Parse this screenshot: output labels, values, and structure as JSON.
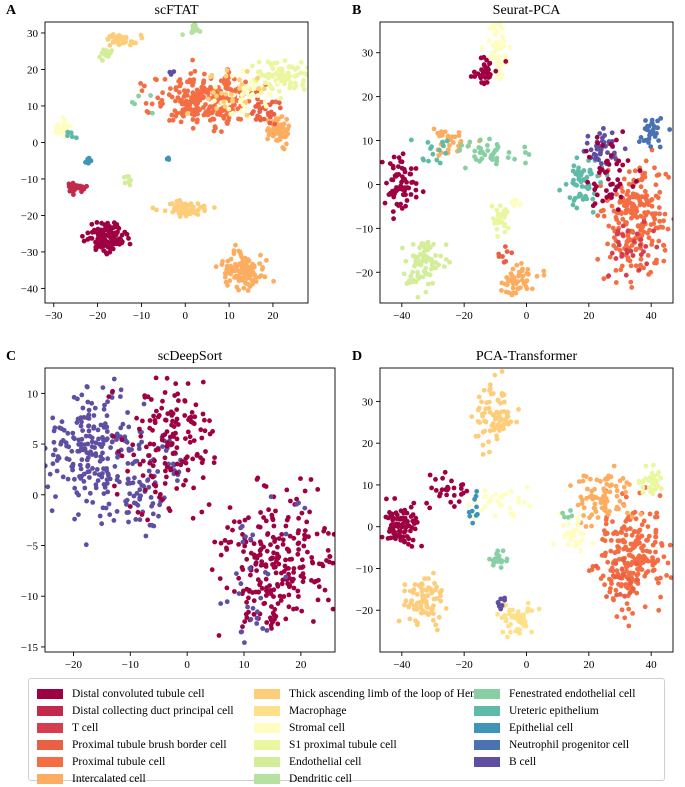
{
  "cell_types": [
    {
      "name": "Distal convoluted tubule cell",
      "color": "#9e0142"
    },
    {
      "name": "Distal collecting duct principal cell",
      "color": "#c2294a"
    },
    {
      "name": "T cell",
      "color": "#d53e4f"
    },
    {
      "name": "Proximal tubule brush border cell",
      "color": "#ea6044"
    },
    {
      "name": "Proximal tubule cell",
      "color": "#f46d43"
    },
    {
      "name": "Intercalated cell",
      "color": "#fdad60"
    },
    {
      "name": "Thick ascending limb of the loop of Henle",
      "color": "#fdcd7a"
    },
    {
      "name": "Macrophage",
      "color": "#fee08b"
    },
    {
      "name": "Stromal cell",
      "color": "#fffdbf"
    },
    {
      "name": "S1 proximal tubule cell",
      "color": "#eaf79e"
    },
    {
      "name": "Endothelial cell",
      "color": "#d3ed9b"
    },
    {
      "name": "Dendritic cell",
      "color": "#b6e1a1"
    },
    {
      "name": "Fenestrated endothelial cell",
      "color": "#88cfa4"
    },
    {
      "name": "Ureteric epithelium",
      "color": "#5fbaa8"
    },
    {
      "name": "Epithelial cell",
      "color": "#3d95b8"
    },
    {
      "name": "Neutrophil progenitor cell",
      "color": "#4a72b2"
    },
    {
      "name": "B cell",
      "color": "#5e4fa2"
    }
  ],
  "chart_data": [
    {
      "type": "scatter",
      "id": "A",
      "letter": "A",
      "title": "scFTAT",
      "xlim": [
        -32,
        28
      ],
      "ylim": [
        -44,
        33
      ],
      "xticks": [
        -30,
        -20,
        -10,
        0,
        10,
        20
      ],
      "yticks": [
        -40,
        -30,
        -20,
        -10,
        0,
        10,
        20,
        30
      ],
      "clusters": [
        {
          "type": 4,
          "cx": 5,
          "cy": 12,
          "sx": 6,
          "sy": 3.5,
          "n": 260
        },
        {
          "type": 5,
          "cx": 21,
          "cy": 3,
          "sx": 1.3,
          "sy": 1.8,
          "n": 60
        },
        {
          "type": 3,
          "cx": 18,
          "cy": 9,
          "sx": 2,
          "sy": 2.5,
          "n": 30
        },
        {
          "type": 9,
          "cx": 22,
          "cy": 18,
          "sx": 3,
          "sy": 2,
          "n": 90
        },
        {
          "type": 8,
          "cx": 14,
          "cy": 14,
          "sx": 3,
          "sy": 3,
          "n": 40
        },
        {
          "type": 6,
          "cx": 10,
          "cy": 14,
          "sx": 4,
          "sy": 4,
          "n": 25
        },
        {
          "type": 11,
          "cx": 2,
          "cy": 31,
          "sx": 0.8,
          "sy": 0.8,
          "n": 15
        },
        {
          "type": 6,
          "cx": -15,
          "cy": 28,
          "sx": 2,
          "sy": 0.8,
          "n": 35
        },
        {
          "type": 10,
          "cx": -18,
          "cy": 24,
          "sx": 1,
          "sy": 0.8,
          "n": 15
        },
        {
          "type": 8,
          "cx": -28,
          "cy": 4,
          "sx": 1,
          "sy": 1,
          "n": 25
        },
        {
          "type": 13,
          "cx": -26,
          "cy": 2,
          "sx": 0.6,
          "sy": 1,
          "n": 5
        },
        {
          "type": 14,
          "cx": -22,
          "cy": -5,
          "sx": 0.5,
          "sy": 0.4,
          "n": 6
        },
        {
          "type": 10,
          "cx": -13,
          "cy": -10,
          "sx": 0.5,
          "sy": 1,
          "n": 8
        },
        {
          "type": 1,
          "cx": -25,
          "cy": -12.5,
          "sx": 1.2,
          "sy": 0.8,
          "n": 30
        },
        {
          "type": 0,
          "cx": -18,
          "cy": -26,
          "sx": 2.2,
          "sy": 1.8,
          "n": 120
        },
        {
          "type": 6,
          "cx": 0,
          "cy": -18,
          "sx": 2.5,
          "sy": 1,
          "n": 60
        },
        {
          "type": 5,
          "cx": 13,
          "cy": -35,
          "sx": 2.5,
          "sy": 2.5,
          "n": 110
        },
        {
          "type": 14,
          "cx": -5,
          "cy": -5,
          "sx": 1,
          "sy": 1,
          "n": 3
        },
        {
          "type": 16,
          "cx": -3,
          "cy": 19,
          "sx": 0.5,
          "sy": 0.5,
          "n": 3
        },
        {
          "type": 12,
          "cx": -8,
          "cy": 10,
          "sx": 1.5,
          "sy": 2,
          "n": 5
        }
      ]
    },
    {
      "type": "scatter",
      "id": "B",
      "letter": "B",
      "title": "Seurat-PCA",
      "xlim": [
        -47,
        47
      ],
      "ylim": [
        -27,
        37
      ],
      "xticks": [
        -40,
        -20,
        0,
        20,
        40
      ],
      "yticks": [
        -20,
        -10,
        0,
        10,
        20,
        30
      ],
      "clusters": [
        {
          "type": 8,
          "cx": -9,
          "cy": 31,
          "sx": 2,
          "sy": 3,
          "n": 60
        },
        {
          "type": 0,
          "cx": -13,
          "cy": 26,
          "sx": 2,
          "sy": 1.5,
          "n": 35
        },
        {
          "type": 0,
          "cx": -40,
          "cy": 0,
          "sx": 3,
          "sy": 3,
          "n": 70
        },
        {
          "type": 5,
          "cx": -25,
          "cy": 10,
          "sx": 3,
          "sy": 2,
          "n": 35
        },
        {
          "type": 12,
          "cx": -10,
          "cy": 7,
          "sx": 6,
          "sy": 2,
          "n": 40
        },
        {
          "type": 13,
          "cx": -30,
          "cy": 7,
          "sx": 3,
          "sy": 2,
          "n": 15
        },
        {
          "type": 9,
          "cx": -8,
          "cy": -8,
          "sx": 1.5,
          "sy": 2,
          "n": 30
        },
        {
          "type": 10,
          "cx": -33,
          "cy": -18,
          "sx": 3,
          "sy": 3,
          "n": 80
        },
        {
          "type": 5,
          "cx": -3,
          "cy": -22,
          "sx": 3,
          "sy": 2,
          "n": 50
        },
        {
          "type": 3,
          "cx": -7,
          "cy": -16,
          "sx": 1,
          "sy": 1,
          "n": 8
        },
        {
          "type": 4,
          "cx": 35,
          "cy": -8,
          "sx": 5,
          "sy": 6,
          "n": 230
        },
        {
          "type": 13,
          "cx": 18,
          "cy": 0,
          "sx": 3,
          "sy": 3,
          "n": 60
        },
        {
          "type": 16,
          "cx": 24,
          "cy": 9,
          "sx": 3,
          "sy": 2,
          "n": 40
        },
        {
          "type": 15,
          "cx": 40,
          "cy": 12,
          "sx": 2,
          "sy": 1.5,
          "n": 35
        },
        {
          "type": 0,
          "cx": 27,
          "cy": 2,
          "sx": 5,
          "sy": 4,
          "n": 50
        },
        {
          "type": 2,
          "cx": 33,
          "cy": -15,
          "sx": 4,
          "sy": 3,
          "n": 30
        },
        {
          "type": 8,
          "cx": -3,
          "cy": -4,
          "sx": 1,
          "sy": 1,
          "n": 8
        }
      ]
    },
    {
      "type": "scatter",
      "id": "C",
      "letter": "C",
      "title": "scDeepSort",
      "xlim": [
        -25,
        26
      ],
      "ylim": [
        -15.5,
        12.5
      ],
      "xticks": [
        -20,
        -10,
        0,
        10,
        20
      ],
      "yticks": [
        -15,
        -10,
        -5,
        0,
        5,
        10
      ],
      "clusters": [
        {
          "type": 16,
          "cx": -16,
          "cy": 4,
          "sx": 4,
          "sy": 3.2,
          "n": 230
        },
        {
          "type": 16,
          "cx": -8,
          "cy": 0,
          "sx": 2,
          "sy": 2,
          "n": 40
        },
        {
          "type": 16,
          "cx": -3,
          "cy": 4,
          "sx": 1.5,
          "sy": 1.5,
          "n": 20
        },
        {
          "type": 0,
          "cx": -3,
          "cy": 5,
          "sx": 4,
          "sy": 3.2,
          "n": 150
        },
        {
          "type": 0,
          "cx": 16,
          "cy": -6,
          "sx": 5,
          "sy": 3,
          "n": 220
        },
        {
          "type": 0,
          "cx": 13,
          "cy": -11,
          "sx": 2.5,
          "sy": 1.5,
          "n": 40
        },
        {
          "type": 16,
          "cx": 12,
          "cy": -9,
          "sx": 3,
          "sy": 3,
          "n": 25
        },
        {
          "type": 16,
          "cx": 17,
          "cy": -5,
          "sx": 3,
          "sy": 2,
          "n": 8
        },
        {
          "type": 0,
          "cx": -13,
          "cy": 5,
          "sx": 2,
          "sy": 3,
          "n": 6
        }
      ]
    },
    {
      "type": "scatter",
      "id": "D",
      "letter": "D",
      "title": "PCA-Transformer",
      "xlim": [
        -47,
        47
      ],
      "ylim": [
        -30,
        38
      ],
      "xticks": [
        -40,
        -20,
        0,
        20,
        40
      ],
      "yticks": [
        -20,
        -10,
        0,
        10,
        20,
        30
      ],
      "clusters": [
        {
          "type": 6,
          "cx": -10,
          "cy": 28,
          "sx": 3,
          "sy": 4,
          "n": 80
        },
        {
          "type": 0,
          "cx": -40,
          "cy": 0,
          "sx": 3,
          "sy": 3,
          "n": 80
        },
        {
          "type": 0,
          "cx": -25,
          "cy": 9,
          "sx": 3,
          "sy": 2,
          "n": 30
        },
        {
          "type": 8,
          "cx": -8,
          "cy": 6,
          "sx": 5,
          "sy": 2,
          "n": 30
        },
        {
          "type": 14,
          "cx": -17,
          "cy": 6,
          "sx": 1,
          "sy": 2,
          "n": 10
        },
        {
          "type": 12,
          "cx": -9,
          "cy": -8,
          "sx": 1.2,
          "sy": 1.5,
          "n": 20
        },
        {
          "type": 6,
          "cx": -33,
          "cy": -18,
          "sx": 3,
          "sy": 3,
          "n": 80
        },
        {
          "type": 7,
          "cx": -3,
          "cy": -22,
          "sx": 3,
          "sy": 2,
          "n": 50
        },
        {
          "type": 16,
          "cx": -8,
          "cy": -18,
          "sx": 1,
          "sy": 1,
          "n": 8
        },
        {
          "type": 4,
          "cx": 34,
          "cy": -7,
          "sx": 5,
          "sy": 6,
          "n": 220
        },
        {
          "type": 5,
          "cx": 25,
          "cy": 7,
          "sx": 5,
          "sy": 3,
          "n": 80
        },
        {
          "type": 9,
          "cx": 40,
          "cy": 11,
          "sx": 2,
          "sy": 1.5,
          "n": 30
        },
        {
          "type": 8,
          "cx": 15,
          "cy": -2,
          "sx": 3,
          "sy": 2,
          "n": 30
        },
        {
          "type": 3,
          "cx": 30,
          "cy": -13,
          "sx": 3,
          "sy": 3,
          "n": 20
        },
        {
          "type": 12,
          "cx": 13,
          "cy": 3,
          "sx": 1,
          "sy": 1,
          "n": 5
        }
      ]
    }
  ]
}
